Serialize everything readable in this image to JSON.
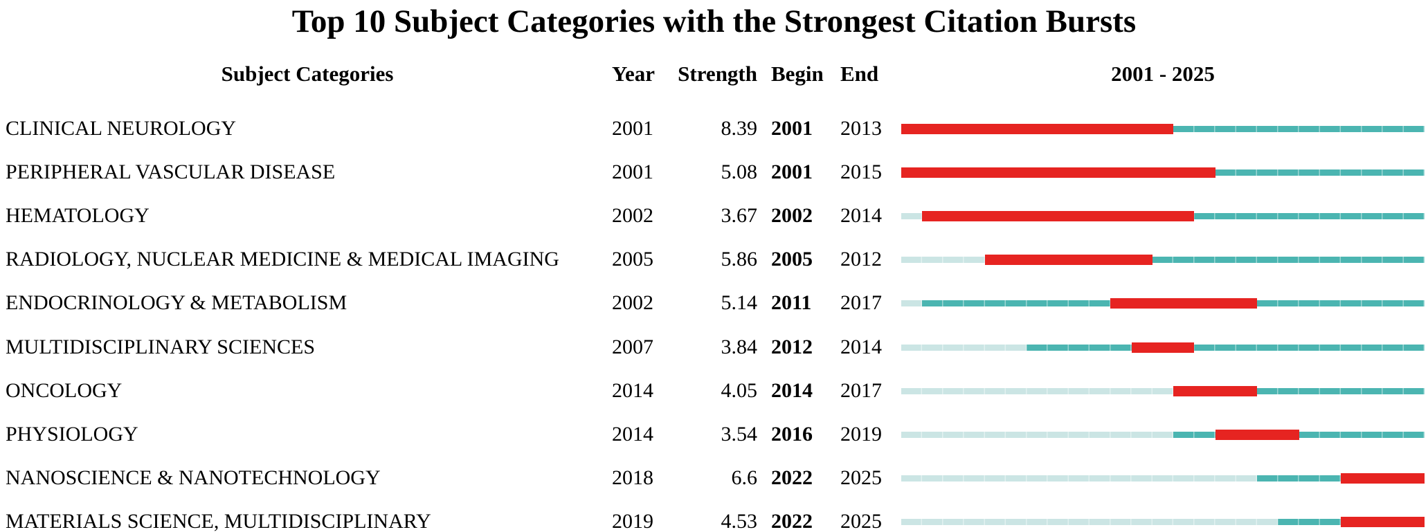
{
  "chart_data": {
    "type": "table",
    "title": "Top 10 Subject Categories with the Strongest Citation Bursts",
    "columns": [
      "Subject Categories",
      "Year",
      "Strength",
      "Begin",
      "End",
      "2001 - 2025"
    ],
    "timeline": {
      "start": 2001,
      "end": 2025
    },
    "legend": {
      "burst_color": "#e62421",
      "active_line_color": "#4bb5b1",
      "pre_publication_line_color": "#cbe5e4"
    },
    "rows": [
      {
        "category": "CLINICAL NEUROLOGY",
        "year": 2001,
        "strength": "8.39",
        "begin": 2001,
        "end": 2013
      },
      {
        "category": "PERIPHERAL VASCULAR DISEASE",
        "year": 2001,
        "strength": "5.08",
        "begin": 2001,
        "end": 2015
      },
      {
        "category": "HEMATOLOGY",
        "year": 2002,
        "strength": "3.67",
        "begin": 2002,
        "end": 2014
      },
      {
        "category": "RADIOLOGY, NUCLEAR MEDICINE & MEDICAL IMAGING",
        "year": 2005,
        "strength": "5.86",
        "begin": 2005,
        "end": 2012
      },
      {
        "category": "ENDOCRINOLOGY & METABOLISM",
        "year": 2002,
        "strength": "5.14",
        "begin": 2011,
        "end": 2017
      },
      {
        "category": "MULTIDISCIPLINARY SCIENCES",
        "year": 2007,
        "strength": "3.84",
        "begin": 2012,
        "end": 2014
      },
      {
        "category": "ONCOLOGY",
        "year": 2014,
        "strength": "4.05",
        "begin": 2014,
        "end": 2017
      },
      {
        "category": "PHYSIOLOGY",
        "year": 2014,
        "strength": "3.54",
        "begin": 2016,
        "end": 2019
      },
      {
        "category": "NANOSCIENCE & NANOTECHNOLOGY",
        "year": 2018,
        "strength": "6.6",
        "begin": 2022,
        "end": 2025
      },
      {
        "category": "MATERIALS SCIENCE, MULTIDISCIPLINARY",
        "year": 2019,
        "strength": "4.53",
        "begin": 2022,
        "end": 2025
      }
    ]
  }
}
